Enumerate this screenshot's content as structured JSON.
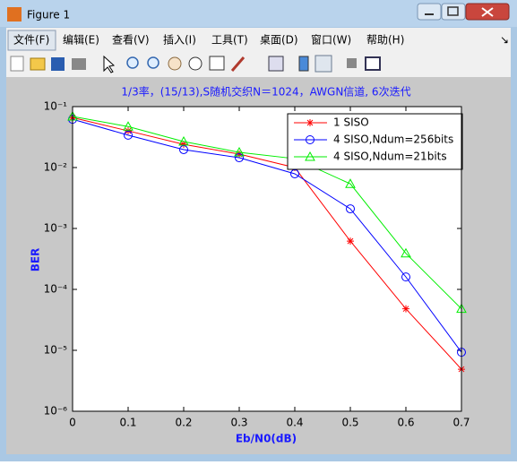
{
  "window": {
    "title": "Figure 1",
    "menu": [
      "文件(F)",
      "编辑(E)",
      "查看(V)",
      "插入(I)",
      "工具(T)",
      "桌面(D)",
      "窗口(W)",
      "帮助(H)"
    ]
  },
  "chart_data": {
    "type": "line",
    "title": "1/3率，(15/13),S随机交织N＝1024，AWGN信道, 6次迭代",
    "x_label": "Eb/N0(dB)",
    "y_label": "BER",
    "x": [
      0,
      0.1,
      0.2,
      0.3,
      0.4,
      0.5,
      0.6,
      0.7
    ],
    "series": [
      {
        "name": "1 SISO",
        "color": "#ff0000",
        "marker": "star",
        "values": [
          0.066,
          0.04,
          0.024,
          0.0166,
          0.01,
          0.00062,
          4.8e-05,
          4.9e-06
        ]
      },
      {
        "name": "4 SISO,Ndum=256bits",
        "color": "#0000ff",
        "marker": "circle",
        "values": [
          0.062,
          0.034,
          0.0197,
          0.0145,
          0.0079,
          0.0021,
          0.00016,
          9.3e-06
        ]
      },
      {
        "name": "4 SISO,Ndum=21bits",
        "color": "#00ee00",
        "marker": "triangle",
        "values": [
          0.069,
          0.047,
          0.0267,
          0.0178,
          0.014,
          0.0054,
          0.00039,
          4.8e-05
        ]
      }
    ],
    "xlim": [
      0,
      0.7
    ],
    "xticks": [
      0,
      0.1,
      0.2,
      0.3,
      0.4,
      0.5,
      0.6,
      0.7
    ],
    "ylim": [
      1e-06,
      0.1
    ],
    "log_y": true,
    "yticks": [
      {
        "value": 1e-06,
        "label": "10⁻⁶"
      },
      {
        "value": 1e-05,
        "label": "10⁻⁵"
      },
      {
        "value": 0.0001,
        "label": "10⁻⁴"
      },
      {
        "value": 0.001,
        "label": "10⁻³"
      },
      {
        "value": 0.01,
        "label": "10⁻²"
      },
      {
        "value": 0.1,
        "label": "10⁻¹"
      }
    ],
    "grid": false,
    "legend": "upper right"
  }
}
